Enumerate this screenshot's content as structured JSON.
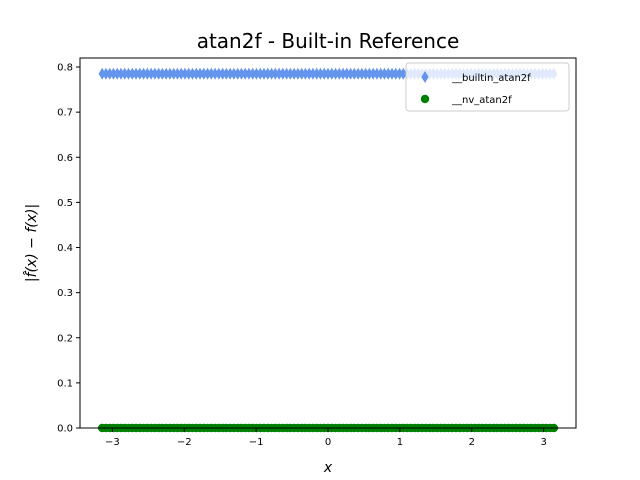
{
  "chart_data": {
    "type": "scatter",
    "title": "atan2f - Built-in Reference",
    "xlabel": "x",
    "ylabel": "|f̂(x) − f(x)|",
    "xlim": [
      -3.45,
      3.45
    ],
    "ylim": [
      0,
      0.82
    ],
    "xticks": [
      -3,
      -2,
      -1,
      0,
      1,
      2,
      3
    ],
    "xtick_labels": [
      "−3",
      "−2",
      "−1",
      "0",
      "1",
      "2",
      "3"
    ],
    "yticks": [
      0.0,
      0.1,
      0.2,
      0.3,
      0.4,
      0.5,
      0.6,
      0.7,
      0.8
    ],
    "ytick_labels": [
      "0.0",
      "0.1",
      "0.2",
      "0.3",
      "0.4",
      "0.5",
      "0.6",
      "0.7",
      "0.8"
    ],
    "grid": false,
    "legend_position": "top-right",
    "series": [
      {
        "name": "__builtin_atan2f",
        "color": "#6495ed",
        "marker": "thin-diamond",
        "x_range": [
          -3.14159,
          3.14159
        ],
        "y_value": 0.785
      },
      {
        "name": "__nv_atan2f",
        "color": "#008000",
        "marker": "circle",
        "x_range": [
          -3.14159,
          3.14159
        ],
        "y_value": 0.0
      }
    ]
  }
}
